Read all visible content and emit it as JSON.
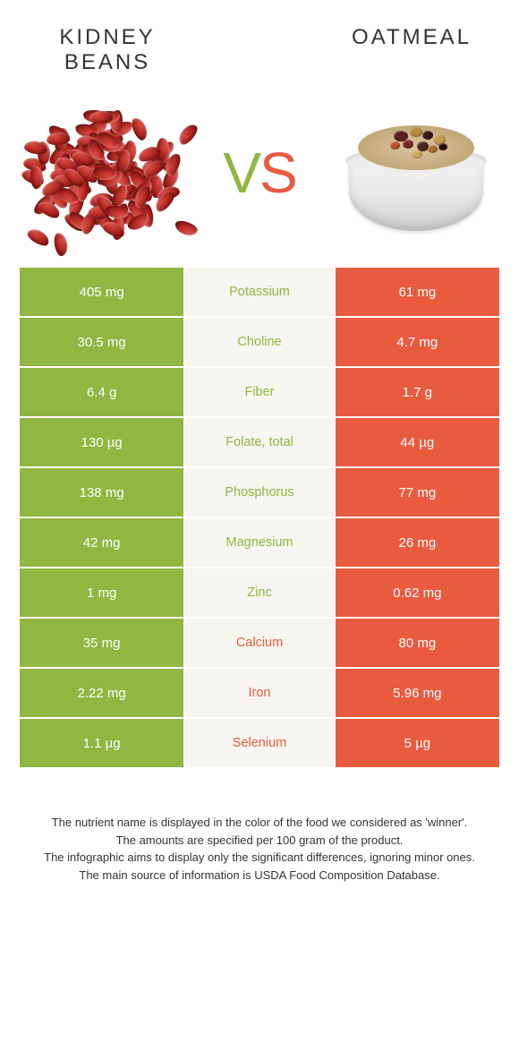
{
  "colors": {
    "green": "#8fb741",
    "orange": "#e95b3f",
    "mid_bg": "#f7f5ef",
    "text": "#333333",
    "white": "#ffffff"
  },
  "foods": {
    "left": {
      "name": "KIDNEY\nBEANS",
      "color": "#8fb741"
    },
    "right": {
      "name": "OATMEAL",
      "color": "#e95b3f"
    }
  },
  "vs": {
    "v": "V",
    "s": "S"
  },
  "rows": [
    {
      "nutrient": "Potassium",
      "left": "405 mg",
      "right": "61 mg",
      "winner": "left"
    },
    {
      "nutrient": "Choline",
      "left": "30.5 mg",
      "right": "4.7 mg",
      "winner": "left"
    },
    {
      "nutrient": "Fiber",
      "left": "6.4 g",
      "right": "1.7 g",
      "winner": "left"
    },
    {
      "nutrient": "Folate, total",
      "left": "130 µg",
      "right": "44 µg",
      "winner": "left"
    },
    {
      "nutrient": "Phosphorus",
      "left": "138 mg",
      "right": "77 mg",
      "winner": "left"
    },
    {
      "nutrient": "Magnesium",
      "left": "42 mg",
      "right": "26 mg",
      "winner": "left"
    },
    {
      "nutrient": "Zinc",
      "left": "1 mg",
      "right": "0.62 mg",
      "winner": "left"
    },
    {
      "nutrient": "Calcium",
      "left": "35 mg",
      "right": "80 mg",
      "winner": "right"
    },
    {
      "nutrient": "Iron",
      "left": "2.22 mg",
      "right": "5.96 mg",
      "winner": "right"
    },
    {
      "nutrient": "Selenium",
      "left": "1.1 µg",
      "right": "5 µg",
      "winner": "right"
    }
  ],
  "footer": [
    "The nutrient name is displayed in the color of the food we considered as 'winner'.",
    "The amounts are specified per 100 gram of the product.",
    "The infographic aims to display only the significant differences, ignoring minor ones.",
    "The main source of information is USDA Food Composition Database."
  ]
}
